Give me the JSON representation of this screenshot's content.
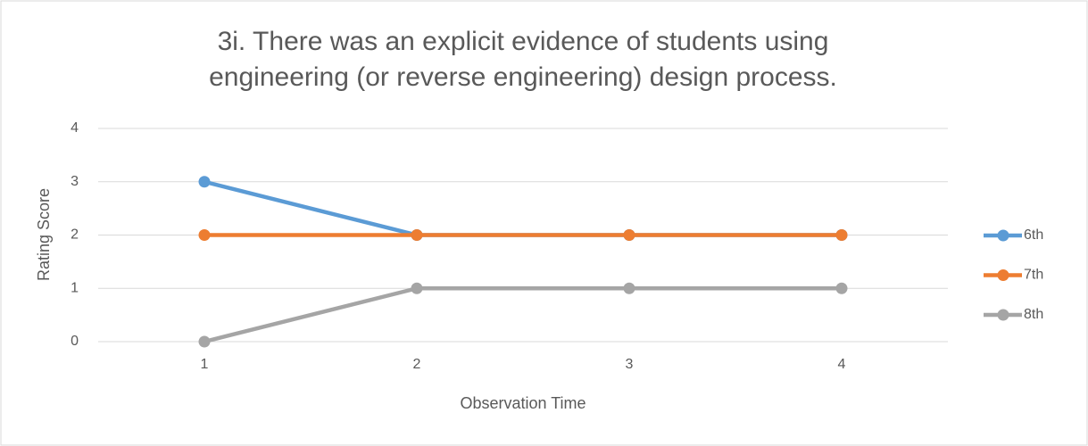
{
  "chart_data": {
    "type": "line",
    "title": [
      "3i. There was an explicit evidence of students using",
      "engineering (or reverse engineering) design process."
    ],
    "x_label": "Observation Time",
    "y_label": "Rating Score",
    "categories": [
      "1",
      "2",
      "3",
      "4"
    ],
    "series": [
      {
        "name": "6th",
        "color": "#5b9bd5",
        "values": [
          3,
          2,
          2,
          2
        ]
      },
      {
        "name": "7th",
        "color": "#ed7d31",
        "values": [
          2,
          2,
          2,
          2
        ]
      },
      {
        "name": "8th",
        "color": "#a5a5a5",
        "values": [
          0,
          1,
          1,
          1
        ]
      }
    ],
    "ylim": [
      0,
      4
    ],
    "yticks": [
      0,
      1,
      2,
      3,
      4
    ],
    "grid": true,
    "legend": "right"
  }
}
